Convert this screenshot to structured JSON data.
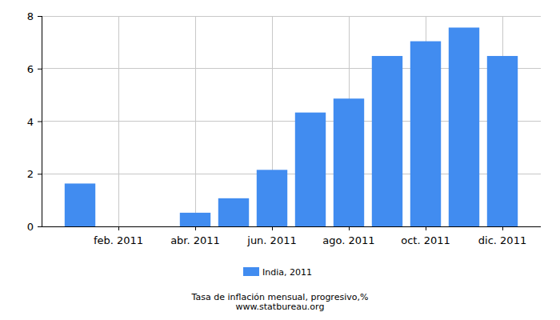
{
  "chart_data": {
    "type": "bar",
    "title": "Tasa de inflación mensual, progresivo,%",
    "subtitle": "www.statbureau.org",
    "categories": [
      null,
      "feb. 2011",
      null,
      "abr. 2011",
      null,
      "jun. 2011",
      null,
      "ago. 2011",
      null,
      "oct. 2011",
      null,
      "dic. 2011"
    ],
    "series": [
      {
        "name": "India, 2011",
        "color": "#418cf0",
        "values": [
          1.63,
          0,
          0,
          0.52,
          1.07,
          2.15,
          4.33,
          4.86,
          6.48,
          7.04,
          7.56,
          6.48
        ]
      }
    ],
    "ylim": [
      0,
      8
    ],
    "yticks": [
      0,
      2,
      4,
      6,
      8
    ],
    "grid": true,
    "legend": "bottom"
  }
}
